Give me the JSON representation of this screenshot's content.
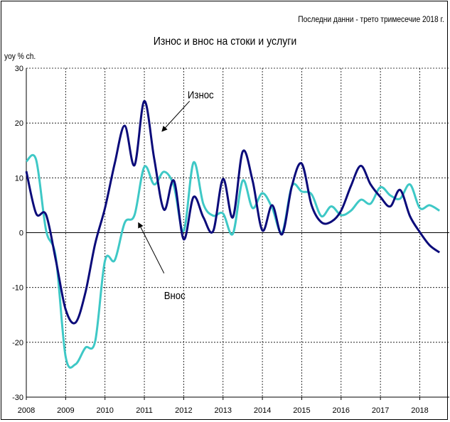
{
  "note": "Последни данни - трето тримесечие 2018 г.",
  "chart_data": {
    "type": "line",
    "title": "Износ и внос на стоки и услуги",
    "ylabel": "yoy % ch.",
    "xlabel": "",
    "ylim": [
      -30,
      30
    ],
    "yticks": [
      30,
      20,
      10,
      0,
      -10,
      -20,
      -30
    ],
    "xlim": [
      2008,
      2018.75
    ],
    "xticks": [
      "2008",
      "2009",
      "2010",
      "2011",
      "2012",
      "2013",
      "2014",
      "2015",
      "2016",
      "2017",
      "2018"
    ],
    "grid": true,
    "colors": {
      "export": "#0b0b7a",
      "import": "#3ec8c6"
    },
    "series": [
      {
        "name": "Износ",
        "x": [
          2008.0,
          2008.25,
          2008.5,
          2008.75,
          2009.0,
          2009.25,
          2009.5,
          2009.75,
          2010.0,
          2010.25,
          2010.5,
          2010.75,
          2011.0,
          2011.25,
          2011.5,
          2011.75,
          2012.0,
          2012.25,
          2012.5,
          2012.75,
          2013.0,
          2013.25,
          2013.5,
          2013.75,
          2014.0,
          2014.25,
          2014.5,
          2014.75,
          2015.0,
          2015.25,
          2015.5,
          2015.75,
          2016.0,
          2016.25,
          2016.5,
          2016.75,
          2017.0,
          2017.25,
          2017.5,
          2017.75,
          2018.0,
          2018.25,
          2018.5
        ],
        "values": [
          11.2,
          3.5,
          3.3,
          -5.0,
          -14.0,
          -16.4,
          -11.0,
          -2.0,
          4.5,
          12.7,
          19.5,
          12.3,
          24.0,
          13.5,
          4.2,
          9.5,
          -1.2,
          6.5,
          2.8,
          0.3,
          9.8,
          2.8,
          14.8,
          9.5,
          0.4,
          5.0,
          -0.3,
          8.5,
          12.6,
          5.0,
          1.9,
          2.0,
          4.0,
          8.5,
          12.2,
          8.8,
          6.5,
          4.8,
          7.8,
          3.0,
          0.1,
          -2.3,
          -3.6
        ]
      },
      {
        "name": "Внос",
        "x": [
          2008.0,
          2008.25,
          2008.5,
          2008.75,
          2009.0,
          2009.25,
          2009.5,
          2009.75,
          2010.0,
          2010.25,
          2010.5,
          2010.75,
          2011.0,
          2011.25,
          2011.5,
          2011.75,
          2012.0,
          2012.25,
          2012.5,
          2012.75,
          2013.0,
          2013.25,
          2013.5,
          2013.75,
          2014.0,
          2014.25,
          2014.5,
          2014.75,
          2015.0,
          2015.25,
          2015.5,
          2015.75,
          2016.0,
          2016.25,
          2016.5,
          2016.75,
          2017.0,
          2017.25,
          2017.5,
          2017.75,
          2018.0,
          2018.25,
          2018.5
        ],
        "values": [
          13.0,
          13.3,
          0.5,
          -4.5,
          -22.6,
          -24.0,
          -21.0,
          -19.8,
          -5.1,
          -5.0,
          1.8,
          3.2,
          12.0,
          8.8,
          11.1,
          8.5,
          0.3,
          12.8,
          5.2,
          3.1,
          3.5,
          -0.2,
          9.5,
          4.5,
          7.2,
          4.5,
          0.0,
          8.5,
          7.5,
          7.0,
          3.0,
          4.8,
          3.2,
          4.0,
          6.0,
          5.3,
          8.3,
          6.8,
          6.2,
          8.8,
          4.5,
          5.0,
          4.0
        ]
      }
    ],
    "annotations": [
      {
        "text": "Износ",
        "series": "Износ"
      },
      {
        "text": "Внос",
        "series": "Внос"
      }
    ]
  }
}
